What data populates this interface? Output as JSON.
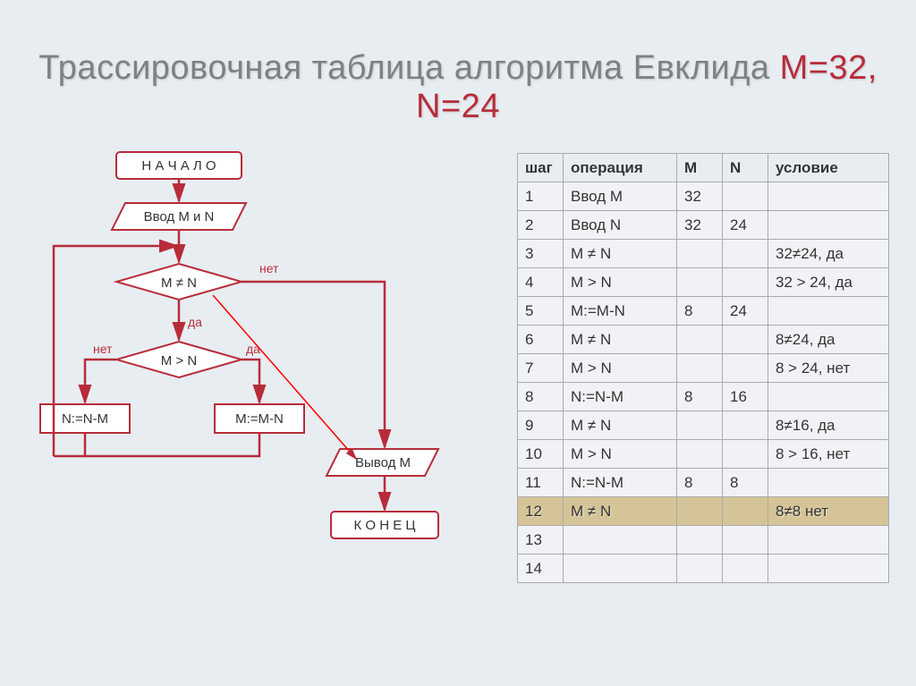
{
  "title_plain": "Трассировочная таблица алгоритма Евклида ",
  "title_accent": "M=32, N=24",
  "flowchart": {
    "stroke": "#b82c3a",
    "fill_box": "#ffffff",
    "text_color": "#333333",
    "label_color": "#b82c3a",
    "nodes": {
      "start": "Н А Ч А Л О",
      "input": "Ввод M и N",
      "cond1": "M ≠ N",
      "cond2": "M > N",
      "opL": "N:=N-M",
      "opR": "M:=M-N",
      "output": "Вывод M",
      "end": "К О Н Е Ц"
    },
    "labels": {
      "yes": "да",
      "no": "нет"
    }
  },
  "table": {
    "headers": [
      "шаг",
      "операция",
      "M",
      "N",
      "условие"
    ],
    "rows": [
      {
        "step": "1",
        "op": "Ввод M",
        "m": "32",
        "n": "",
        "cond": ""
      },
      {
        "step": "2",
        "op": "Ввод N",
        "m": "32",
        "n": "24",
        "cond": ""
      },
      {
        "step": "3",
        "op": "M ≠ N",
        "m": "",
        "n": "",
        "cond": "32≠24, да"
      },
      {
        "step": "4",
        "op": "M > N",
        "m": "",
        "n": "",
        "cond": "32 > 24, да"
      },
      {
        "step": "5",
        "op": "M:=M-N",
        "m": "8",
        "n": "24",
        "cond": ""
      },
      {
        "step": "6",
        "op": "M ≠ N",
        "m": "",
        "n": "",
        "cond": "8≠24, да"
      },
      {
        "step": "7",
        "op": "M > N",
        "m": "",
        "n": "",
        "cond": "8 > 24, нет"
      },
      {
        "step": "8",
        "op": "N:=N-M",
        "m": "8",
        "n": "16",
        "cond": ""
      },
      {
        "step": "9",
        "op": "M ≠ N",
        "m": "",
        "n": "",
        "cond": "8≠16, да"
      },
      {
        "step": "10",
        "op": "M > N",
        "m": "",
        "n": "",
        "cond": "8 > 16, нет"
      },
      {
        "step": "11",
        "op": "N:=N-M",
        "m": "8",
        "n": "8",
        "cond": ""
      },
      {
        "step": "12",
        "op": "M ≠ N",
        "m": "",
        "n": "",
        "cond": "8≠8 нет",
        "highlight": true
      },
      {
        "step": "13",
        "op": "",
        "m": "",
        "n": "",
        "cond": ""
      },
      {
        "step": "14",
        "op": "",
        "m": "",
        "n": "",
        "cond": ""
      }
    ]
  }
}
